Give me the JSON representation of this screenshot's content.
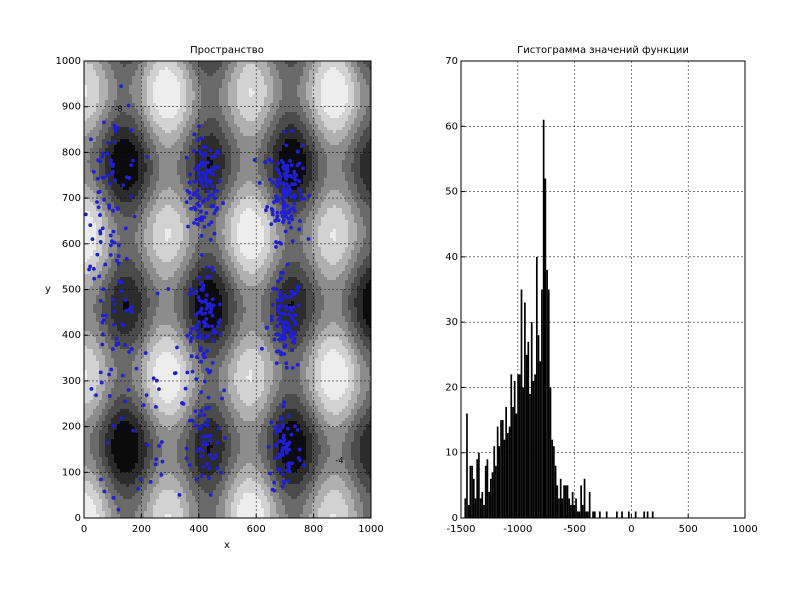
{
  "chart_data": [
    {
      "type": "contour",
      "title": "Пространство",
      "xlabel": "x",
      "ylabel": "y",
      "xlim": [
        0,
        1000
      ],
      "ylim": [
        0,
        1000
      ],
      "x_ticks": [
        0,
        200,
        400,
        600,
        800,
        1000
      ],
      "y_ticks": [
        0,
        100,
        200,
        300,
        400,
        500,
        600,
        700,
        800,
        900,
        1000
      ],
      "x_tick_labels": [
        "0",
        "200",
        "400",
        "600",
        "800",
        "1000"
      ],
      "y_tick_labels": [
        "0",
        "100",
        "200",
        "300",
        "400",
        "500",
        "600",
        "700",
        "800",
        "900",
        "1000"
      ],
      "grid": true,
      "fill_colors": [
        "#0b0b0b",
        "#2c2c2c",
        "#4b4b4b",
        "#6a6a6a",
        "#8c8c8c",
        "#b0b0b0",
        "#d2d2d2",
        "#ededed"
      ],
      "line_color": "#222222",
      "annotations": [
        {
          "text": "-8",
          "x": 120,
          "y": 890
        },
        {
          "text": "-4",
          "x": 890,
          "y": 120
        }
      ],
      "scatter": {
        "color": "#1f1fd6",
        "clusters": [
          {
            "x": 420,
            "y": 720,
            "count": 110,
            "spread": 55
          },
          {
            "x": 700,
            "y": 720,
            "count": 140,
            "spread": 55
          },
          {
            "x": 420,
            "y": 420,
            "count": 90,
            "spread": 55
          },
          {
            "x": 700,
            "y": 420,
            "count": 100,
            "spread": 55
          },
          {
            "x": 100,
            "y": 730,
            "count": 70,
            "spread": 90
          },
          {
            "x": 100,
            "y": 420,
            "count": 55,
            "spread": 90
          },
          {
            "x": 420,
            "y": 150,
            "count": 45,
            "spread": 55
          },
          {
            "x": 700,
            "y": 150,
            "count": 70,
            "spread": 55
          },
          {
            "x": 250,
            "y": 250,
            "count": 35,
            "spread": 140
          }
        ]
      }
    },
    {
      "type": "histogram",
      "title": "Гистограмма значений функции",
      "xlim": [
        -1500,
        1000
      ],
      "ylim": [
        0,
        70
      ],
      "x_ticks": [
        -1500,
        -1000,
        -500,
        0,
        500,
        1000
      ],
      "y_ticks": [
        0,
        10,
        20,
        30,
        40,
        50,
        60,
        70
      ],
      "x_tick_labels": [
        "-1500",
        "-1000",
        "-500",
        "0",
        "500",
        "1000"
      ],
      "y_tick_labels": [
        "0",
        "10",
        "20",
        "30",
        "40",
        "50",
        "60",
        "70"
      ],
      "grid": true,
      "bar_color": "#000000",
      "bin_start": -1470,
      "bin_width": 15,
      "counts": [
        3,
        16,
        2,
        8,
        8,
        6,
        3,
        9,
        10,
        3,
        4,
        2,
        8,
        9,
        4,
        6,
        7,
        11,
        8,
        14,
        11,
        15,
        15,
        12,
        17,
        13,
        14,
        22,
        17,
        21,
        16,
        22,
        22,
        35,
        20,
        33,
        25,
        27,
        19,
        30,
        21,
        22,
        40,
        28,
        24,
        35,
        61,
        52,
        38,
        35,
        20,
        12,
        11,
        8,
        5,
        3,
        6,
        3,
        5,
        5,
        5,
        3,
        2,
        4,
        2,
        3,
        1,
        1,
        5,
        2,
        6,
        1,
        1,
        4,
        0,
        1,
        1,
        0,
        0,
        1,
        0,
        0,
        0,
        1,
        0,
        0,
        0,
        0,
        0,
        1,
        0,
        0,
        1,
        0,
        0,
        0,
        1,
        0,
        0,
        0,
        1,
        0,
        0,
        0,
        0,
        1,
        0,
        1,
        0,
        0,
        1
      ]
    }
  ]
}
